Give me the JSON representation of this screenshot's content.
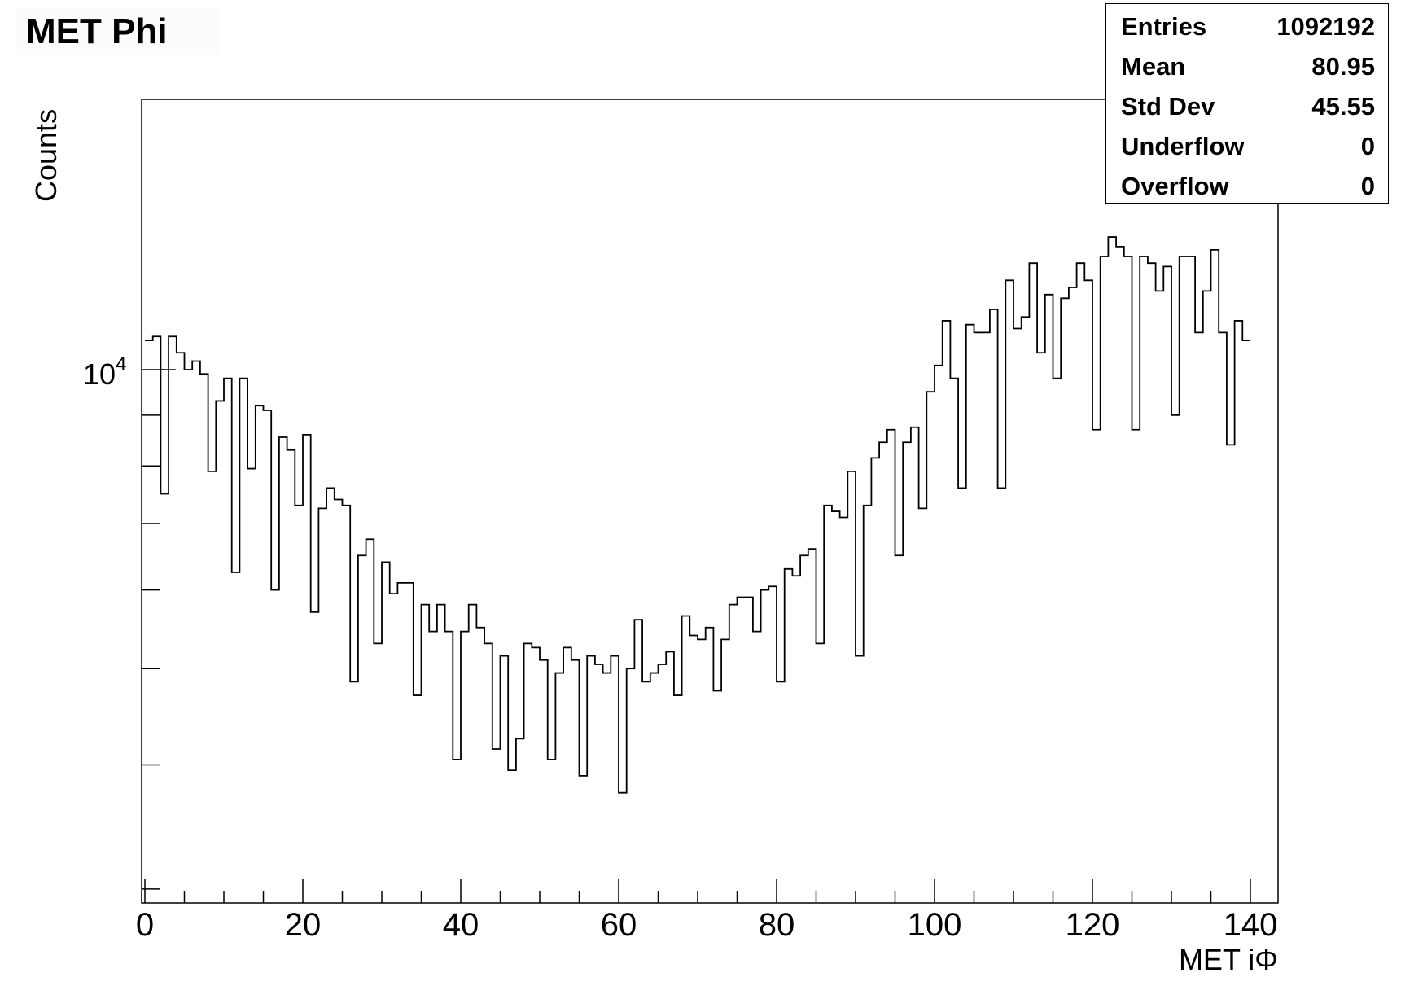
{
  "chart_data": {
    "type": "histogram",
    "title": "MET Phi",
    "xlabel": "MET iΦ",
    "ylabel": "Counts",
    "y_scale": "log",
    "xlim": [
      0,
      144
    ],
    "ylim": [
      2100,
      35000
    ],
    "x_ticks": [
      "0",
      "20",
      "40",
      "60",
      "80",
      "100",
      "120",
      "140"
    ],
    "y_tick_label": {
      "base": "10",
      "exponent": "4"
    },
    "stats": [
      {
        "label": "Entries",
        "value": "1092192"
      },
      {
        "label": "Mean",
        "value": "80.95"
      },
      {
        "label": "Std Dev",
        "value": "45.55"
      },
      {
        "label": "Underflow",
        "value": "0"
      },
      {
        "label": "Overflow",
        "value": "0"
      }
    ],
    "bin_width": 1,
    "x_start": 0,
    "values": [
      10700,
      10800,
      7500,
      10800,
      10400,
      10000,
      10200,
      9900,
      7900,
      9300,
      9800,
      6250,
      9800,
      7950,
      9200,
      9100,
      6000,
      8550,
      8300,
      7300,
      8600,
      5700,
      7250,
      7600,
      7400,
      7300,
      4850,
      6500,
      6750,
      5300,
      6400,
      5950,
      6100,
      6100,
      4700,
      5800,
      5450,
      5800,
      5450,
      4050,
      5450,
      5800,
      5500,
      5300,
      4150,
      5150,
      3950,
      4250,
      5300,
      5250,
      5100,
      4050,
      4950,
      5250,
      5100,
      3900,
      5150,
      5050,
      4950,
      5150,
      3750,
      5000,
      5600,
      4850,
      4950,
      5050,
      5200,
      4700,
      5650,
      5400,
      5350,
      5500,
      4750,
      5350,
      5800,
      5900,
      5900,
      5450,
      6000,
      6050,
      4850,
      6300,
      6200,
      6500,
      6600,
      5300,
      7300,
      7200,
      7100,
      7900,
      5150,
      7300,
      8150,
      8450,
      8700,
      6500,
      8450,
      8750,
      7250,
      9500,
      10100,
      11200,
      9800,
      7600,
      11100,
      10900,
      10900,
      11500,
      7600,
      12300,
      11000,
      11300,
      12800,
      10400,
      11900,
      9800,
      11800,
      12100,
      12800,
      12300,
      8700,
      13000,
      13600,
      13300,
      13000,
      8700,
      13000,
      12800,
      12000,
      12700,
      9000,
      13000,
      13000,
      10900,
      12000,
      13200,
      10900,
      8400,
      11200,
      10700
    ]
  }
}
